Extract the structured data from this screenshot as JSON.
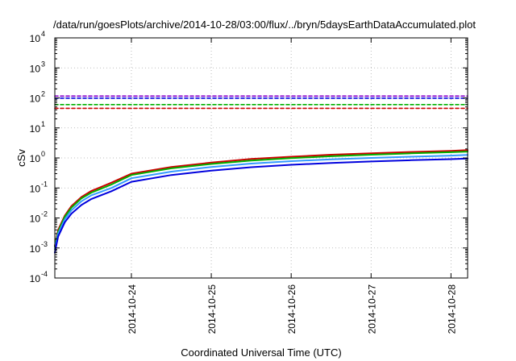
{
  "chart_data": {
    "type": "line",
    "title": "/data/run/goesPlots/archive/2014-10-28/03:00/flux/../bryn/5daysEarthDataAccumulated.plot",
    "xlabel": "Coordinated Universal Time (UTC)",
    "ylabel": "cSv",
    "x_tick_labels": [
      "2014-10-24",
      "2014-10-25",
      "2014-10-26",
      "2014-10-27",
      "2014-10-28"
    ],
    "x_range": [
      "2014-10-23T01:00",
      "2014-10-28T05:00"
    ],
    "y_scale": "log",
    "ylim": [
      0.0001,
      10000
    ],
    "y_ticks": [
      {
        "base": "10",
        "exp": "-4",
        "value": 0.0001
      },
      {
        "base": "10",
        "exp": "-3",
        "value": 0.001
      },
      {
        "base": "10",
        "exp": "-2",
        "value": 0.01
      },
      {
        "base": "10",
        "exp": "-1",
        "value": 0.1
      },
      {
        "base": "10",
        "exp": "0",
        "value": 1
      },
      {
        "base": "10",
        "exp": "1",
        "value": 10
      },
      {
        "base": "10",
        "exp": "2",
        "value": 100
      },
      {
        "base": "10",
        "exp": "3",
        "value": 1000
      },
      {
        "base": "10",
        "exp": "4",
        "value": 10000
      }
    ],
    "grid": true,
    "series": [
      {
        "color": "#cc0000",
        "style": "solid",
        "x": [
          "2014-10-23T01:00",
          "2014-10-23T02:00",
          "2014-10-23T04:00",
          "2014-10-23T06:00",
          "2014-10-23T09:00",
          "2014-10-23T12:00",
          "2014-10-23T18:00",
          "2014-10-24T00:00",
          "2014-10-24T12:00",
          "2014-10-25T00:00",
          "2014-10-25T12:00",
          "2014-10-26T00:00",
          "2014-10-26T12:00",
          "2014-10-27T00:00",
          "2014-10-27T12:00",
          "2014-10-28T00:00",
          "2014-10-28T05:00"
        ],
        "values": [
          0.0012,
          0.004,
          0.012,
          0.025,
          0.05,
          0.08,
          0.15,
          0.3,
          0.5,
          0.7,
          0.92,
          1.1,
          1.28,
          1.42,
          1.58,
          1.72,
          1.82
        ]
      },
      {
        "color": "#00b000",
        "style": "solid",
        "x": [
          "2014-10-23T01:00",
          "2014-10-23T02:00",
          "2014-10-23T04:00",
          "2014-10-23T06:00",
          "2014-10-23T09:00",
          "2014-10-23T12:00",
          "2014-10-23T18:00",
          "2014-10-24T00:00",
          "2014-10-24T12:00",
          "2014-10-25T00:00",
          "2014-10-25T12:00",
          "2014-10-26T00:00",
          "2014-10-26T12:00",
          "2014-10-27T00:00",
          "2014-10-27T12:00",
          "2014-10-28T00:00",
          "2014-10-28T05:00"
        ],
        "values": [
          0.0011,
          0.0035,
          0.011,
          0.022,
          0.045,
          0.07,
          0.13,
          0.27,
          0.45,
          0.63,
          0.82,
          0.98,
          1.14,
          1.28,
          1.42,
          1.55,
          1.63
        ]
      },
      {
        "color": "#3399ff",
        "style": "solid",
        "x": [
          "2014-10-23T01:00",
          "2014-10-23T02:00",
          "2014-10-23T04:00",
          "2014-10-23T06:00",
          "2014-10-23T09:00",
          "2014-10-23T12:00",
          "2014-10-23T18:00",
          "2014-10-24T00:00",
          "2014-10-24T12:00",
          "2014-10-25T00:00",
          "2014-10-25T12:00",
          "2014-10-26T00:00",
          "2014-10-26T12:00",
          "2014-10-27T00:00",
          "2014-10-27T12:00",
          "2014-10-28T00:00",
          "2014-10-28T05:00"
        ],
        "values": [
          0.0009,
          0.003,
          0.009,
          0.018,
          0.036,
          0.057,
          0.1,
          0.21,
          0.35,
          0.5,
          0.65,
          0.78,
          0.9,
          1.0,
          1.1,
          1.2,
          1.26
        ]
      },
      {
        "color": "#0000dd",
        "style": "solid",
        "x": [
          "2014-10-23T01:00",
          "2014-10-23T02:00",
          "2014-10-23T04:00",
          "2014-10-23T06:00",
          "2014-10-23T09:00",
          "2014-10-23T12:00",
          "2014-10-23T18:00",
          "2014-10-24T00:00",
          "2014-10-24T12:00",
          "2014-10-25T00:00",
          "2014-10-25T12:00",
          "2014-10-26T00:00",
          "2014-10-26T12:00",
          "2014-10-27T00:00",
          "2014-10-27T12:00",
          "2014-10-28T00:00",
          "2014-10-28T05:00"
        ],
        "values": [
          0.0007,
          0.0024,
          0.0072,
          0.014,
          0.027,
          0.043,
          0.078,
          0.16,
          0.27,
          0.38,
          0.49,
          0.59,
          0.68,
          0.76,
          0.84,
          0.91,
          0.95
        ]
      },
      {
        "color": "#8800cc",
        "style": "dashed",
        "x": [
          "2014-10-23T01:00",
          "2014-10-28T05:00"
        ],
        "values": [
          115,
          115
        ]
      },
      {
        "color": "#0000dd",
        "style": "dashed",
        "x": [
          "2014-10-23T01:00",
          "2014-10-28T05:00"
        ],
        "values": [
          98,
          98
        ]
      },
      {
        "color": "#00b000",
        "style": "dashed",
        "x": [
          "2014-10-23T01:00",
          "2014-10-28T05:00"
        ],
        "values": [
          60,
          60
        ]
      },
      {
        "color": "#cc0000",
        "style": "dashed",
        "x": [
          "2014-10-23T01:00",
          "2014-10-28T05:00"
        ],
        "values": [
          45,
          45
        ]
      }
    ]
  }
}
